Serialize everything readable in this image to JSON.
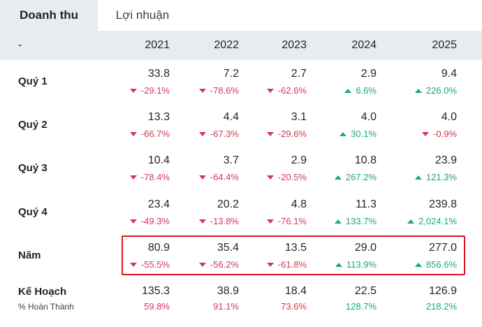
{
  "tabs": [
    {
      "label": "Doanh thu",
      "active": true
    },
    {
      "label": "Lợi nhuận",
      "active": false
    }
  ],
  "header": {
    "first": "-",
    "years": [
      "2021",
      "2022",
      "2023",
      "2024",
      "2025"
    ]
  },
  "rows": [
    {
      "label": "Quý 1",
      "values": [
        "33.8",
        "7.2",
        "2.7",
        "2.9",
        "9.4"
      ],
      "changes": [
        {
          "text": "-29.1%",
          "dir": "down"
        },
        {
          "text": "-78.6%",
          "dir": "down"
        },
        {
          "text": "-62.6%",
          "dir": "down"
        },
        {
          "text": "6.6%",
          "dir": "up"
        },
        {
          "text": "226.0%",
          "dir": "up"
        }
      ]
    },
    {
      "label": "Quý 2",
      "values": [
        "13.3",
        "4.4",
        "3.1",
        "4.0",
        "4.0"
      ],
      "changes": [
        {
          "text": "-66.7%",
          "dir": "down"
        },
        {
          "text": "-67.3%",
          "dir": "down"
        },
        {
          "text": "-29.6%",
          "dir": "down"
        },
        {
          "text": "30.1%",
          "dir": "up"
        },
        {
          "text": "-0.9%",
          "dir": "down"
        }
      ]
    },
    {
      "label": "Quý 3",
      "values": [
        "10.4",
        "3.7",
        "2.9",
        "10.8",
        "23.9"
      ],
      "changes": [
        {
          "text": "-78.4%",
          "dir": "down"
        },
        {
          "text": "-64.4%",
          "dir": "down"
        },
        {
          "text": "-20.5%",
          "dir": "down"
        },
        {
          "text": "267.2%",
          "dir": "up"
        },
        {
          "text": "121.3%",
          "dir": "up"
        }
      ]
    },
    {
      "label": "Quý 4",
      "values": [
        "23.4",
        "20.2",
        "4.8",
        "11.3",
        "239.8"
      ],
      "changes": [
        {
          "text": "-49.3%",
          "dir": "down"
        },
        {
          "text": "-13.8%",
          "dir": "down"
        },
        {
          "text": "-76.1%",
          "dir": "down"
        },
        {
          "text": "133.7%",
          "dir": "up"
        },
        {
          "text": "2,024.1%",
          "dir": "up"
        }
      ]
    },
    {
      "label": "Năm",
      "values": [
        "80.9",
        "35.4",
        "13.5",
        "29.0",
        "277.0"
      ],
      "changes": [
        {
          "text": "-55.5%",
          "dir": "down"
        },
        {
          "text": "-56.2%",
          "dir": "down"
        },
        {
          "text": "-61.8%",
          "dir": "down"
        },
        {
          "text": "113.9%",
          "dir": "up"
        },
        {
          "text": "856.6%",
          "dir": "up"
        }
      ]
    }
  ],
  "plan": {
    "label": "Kế Hoạch",
    "sublabel": "% Hoàn Thành",
    "values": [
      "135.3",
      "38.9",
      "18.4",
      "22.5",
      "126.9"
    ],
    "completion": [
      {
        "text": "59.8%",
        "dir": "down"
      },
      {
        "text": "91.1%",
        "dir": "down"
      },
      {
        "text": "73.6%",
        "dir": "down"
      },
      {
        "text": "128.7%",
        "dir": "up"
      },
      {
        "text": "218.2%",
        "dir": "up"
      }
    ]
  },
  "colors": {
    "up": "#1aa96e",
    "down": "#d03a52",
    "highlight": "#e0141e",
    "header_bg": "#e8ebef"
  }
}
